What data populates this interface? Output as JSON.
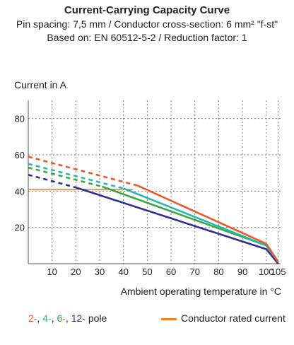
{
  "header": {
    "title": "Current-Carrying Capacity Curve",
    "subtitle1": "Pin spacing: 7,5 mm / Conductor cross-section: 6 mm² \"f-st\"",
    "subtitle2": "Based on: EN 60512-5-2 / Reduction factor: 1"
  },
  "legend": {
    "pole_items": [
      {
        "text": "2-",
        "color": "#e85a2a"
      },
      {
        "text": "4-",
        "color": "#2ab7b0"
      },
      {
        "text": "6-",
        "color": "#3aa845"
      },
      {
        "text": "12-",
        "color": "#2e3192"
      }
    ],
    "pole_suffix": "pole",
    "conductor_label": "Conductor rated current",
    "conductor_color": "#f0822a"
  },
  "chart_data": {
    "type": "line",
    "xlabel": "Ambient operating temperature in °C",
    "ylabel": "Current in A",
    "xlim": [
      0,
      106
    ],
    "ylim": [
      0,
      90
    ],
    "xticks": [
      10,
      20,
      30,
      40,
      50,
      60,
      70,
      80,
      90,
      100,
      105
    ],
    "yticks": [
      20,
      40,
      60,
      80
    ],
    "grid": true,
    "series": [
      {
        "name": "2-pole",
        "color": "#e85a2a",
        "dashed": [
          [
            0,
            59
          ],
          [
            46,
            43
          ]
        ],
        "solid": [
          [
            46,
            43
          ],
          [
            100,
            11
          ],
          [
            105,
            1
          ]
        ]
      },
      {
        "name": "4-pole",
        "color": "#2ab7b0",
        "dashed": [
          [
            0,
            55
          ],
          [
            40,
            41.5
          ]
        ],
        "solid": [
          [
            40,
            41.5
          ],
          [
            100,
            10
          ],
          [
            105,
            1
          ]
        ]
      },
      {
        "name": "6-pole",
        "color": "#3aa845",
        "dashed": [
          [
            0,
            53
          ],
          [
            31,
            42.5
          ]
        ],
        "solid": [
          [
            31,
            42.5
          ],
          [
            100,
            10
          ],
          [
            105,
            1
          ]
        ]
      },
      {
        "name": "12-pole",
        "color": "#2e3192",
        "dashed": [
          [
            0,
            49
          ],
          [
            20,
            42
          ]
        ],
        "solid": [
          [
            20,
            42
          ],
          [
            100,
            8
          ],
          [
            105,
            0
          ]
        ]
      },
      {
        "name": "Conductor rated current",
        "color": "#f0822a",
        "solid": [
          [
            0,
            41
          ],
          [
            44,
            41
          ]
        ]
      }
    ]
  }
}
